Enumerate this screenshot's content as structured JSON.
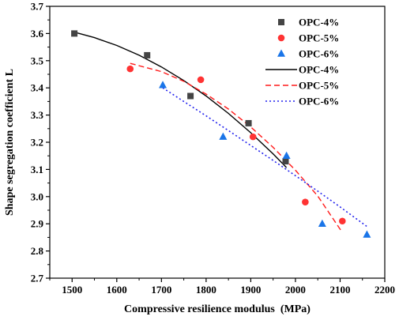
{
  "chart_data": {
    "type": "scatter",
    "xlabel": "Compressive resilience modulus  (MPa)",
    "ylabel": "Shape segregation coefficient L",
    "xlim": [
      1450,
      2200
    ],
    "ylim": [
      2.7,
      3.7
    ],
    "x_ticks": [
      1500,
      1600,
      1700,
      1800,
      1900,
      2000,
      2100,
      2200
    ],
    "y_ticks": [
      2.7,
      2.8,
      2.9,
      3.0,
      3.1,
      3.2,
      3.3,
      3.4,
      3.5,
      3.6,
      3.7
    ],
    "x_tick_labels": [
      "1500",
      "1600",
      "1700",
      "1800",
      "1900",
      "2000",
      "2100",
      "2200"
    ],
    "y_tick_labels": [
      "2.7",
      "2.8",
      "2.9",
      "3.0",
      "3.1",
      "3.2",
      "3.3",
      "3.4",
      "3.5",
      "3.6",
      "3.7"
    ],
    "grid": false,
    "legend_position": "top-right",
    "series": [
      {
        "name": "OPC-4%",
        "kind": "scatter",
        "marker": "square",
        "color": "#444444",
        "points": [
          [
            1505,
            3.6
          ],
          [
            1668,
            3.52
          ],
          [
            1765,
            3.37
          ],
          [
            1895,
            3.27
          ],
          [
            1978,
            3.13
          ]
        ]
      },
      {
        "name": "OPC-5%",
        "kind": "scatter",
        "marker": "circle",
        "color": "#ff3333",
        "points": [
          [
            1630,
            3.47
          ],
          [
            1788,
            3.43
          ],
          [
            1905,
            3.22
          ],
          [
            2022,
            2.98
          ],
          [
            2105,
            2.91
          ]
        ]
      },
      {
        "name": "OPC-6%",
        "kind": "scatter",
        "marker": "triangle",
        "color": "#1a75e8",
        "points": [
          [
            1703,
            3.41
          ],
          [
            1838,
            3.22
          ],
          [
            1980,
            3.15
          ],
          [
            2060,
            2.9
          ],
          [
            2160,
            2.86
          ]
        ]
      },
      {
        "name": "OPC-4%",
        "kind": "line",
        "style": "solid",
        "color": "#000000",
        "points": [
          [
            1505,
            3.605
          ],
          [
            1550,
            3.585
          ],
          [
            1600,
            3.556
          ],
          [
            1650,
            3.52
          ],
          [
            1700,
            3.477
          ],
          [
            1750,
            3.427
          ],
          [
            1800,
            3.37
          ],
          [
            1850,
            3.306
          ],
          [
            1900,
            3.235
          ],
          [
            1950,
            3.157
          ],
          [
            1980,
            3.107
          ]
        ]
      },
      {
        "name": "OPC-5%",
        "kind": "line",
        "style": "dashed",
        "color": "#ff1a1a",
        "points": [
          [
            1630,
            3.49
          ],
          [
            1700,
            3.46
          ],
          [
            1750,
            3.424
          ],
          [
            1800,
            3.377
          ],
          [
            1850,
            3.322
          ],
          [
            1900,
            3.256
          ],
          [
            1950,
            3.181
          ],
          [
            2000,
            3.097
          ],
          [
            2050,
            3.002
          ],
          [
            2100,
            2.88
          ],
          [
            2105,
            2.87
          ]
        ]
      },
      {
        "name": "OPC-6%",
        "kind": "line",
        "style": "dotted",
        "color": "#2222ee",
        "points": [
          [
            1703,
            3.4
          ],
          [
            1750,
            3.35
          ],
          [
            1800,
            3.297
          ],
          [
            1850,
            3.243
          ],
          [
            1900,
            3.188
          ],
          [
            1950,
            3.133
          ],
          [
            2000,
            3.077
          ],
          [
            2050,
            3.02
          ],
          [
            2100,
            2.962
          ],
          [
            2160,
            2.89
          ]
        ]
      }
    ]
  }
}
